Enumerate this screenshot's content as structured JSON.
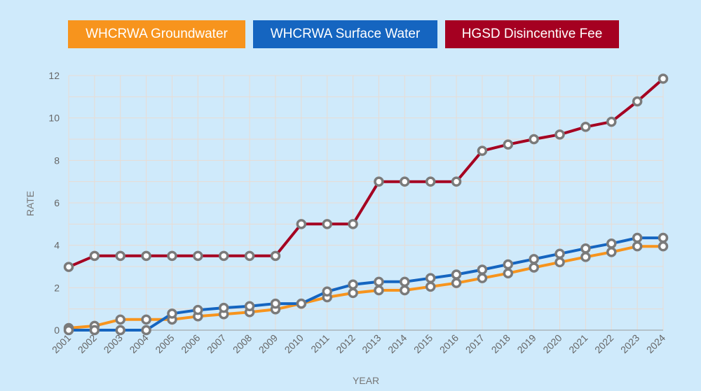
{
  "chart_data": {
    "type": "line",
    "title": "",
    "xlabel": "YEAR",
    "ylabel": "RATE",
    "ylim": [
      0,
      12
    ],
    "yticks": [
      0,
      2,
      4,
      6,
      8,
      10,
      12
    ],
    "grid": true,
    "legend_position": "top",
    "categories": [
      "2001",
      "2002",
      "2003",
      "2004",
      "2005",
      "2006",
      "2007",
      "2008",
      "2009",
      "2010",
      "2011",
      "2012",
      "2013",
      "2014",
      "2015",
      "2016",
      "2017",
      "2018",
      "2019",
      "2020",
      "2021",
      "2022",
      "2023",
      "2024"
    ],
    "series": [
      {
        "name": "WHCRWA Groundwater",
        "color": "#f7941d",
        "values": [
          0.1,
          0.2,
          0.5,
          0.5,
          0.5,
          0.65,
          0.75,
          0.85,
          0.98,
          1.25,
          1.55,
          1.75,
          1.88,
          1.88,
          2.05,
          2.22,
          2.45,
          2.68,
          2.95,
          3.2,
          3.45,
          3.68,
          3.95,
          3.95
        ]
      },
      {
        "name": "WHCRWA Surface Water",
        "color": "#1565c0",
        "values": [
          0,
          0,
          0,
          0,
          0.78,
          0.95,
          1.05,
          1.13,
          1.25,
          1.25,
          1.82,
          2.15,
          2.28,
          2.28,
          2.45,
          2.62,
          2.85,
          3.1,
          3.35,
          3.6,
          3.85,
          4.08,
          4.35,
          4.35
        ]
      },
      {
        "name": "HGSD Disincentive Fee",
        "color": "#a50021",
        "values": [
          2.98,
          3.5,
          3.5,
          3.5,
          3.5,
          3.5,
          3.5,
          3.5,
          3.5,
          5.0,
          5.0,
          5.0,
          7.0,
          7.0,
          7.0,
          7.0,
          8.45,
          8.75,
          9.0,
          9.22,
          9.58,
          9.82,
          10.78,
          11.85
        ]
      }
    ]
  },
  "colors": {
    "background": "#cfeafb",
    "marker_stroke": "#7a7a7a",
    "marker_fill": "#ffffff",
    "grid": "#e8dcd4"
  }
}
